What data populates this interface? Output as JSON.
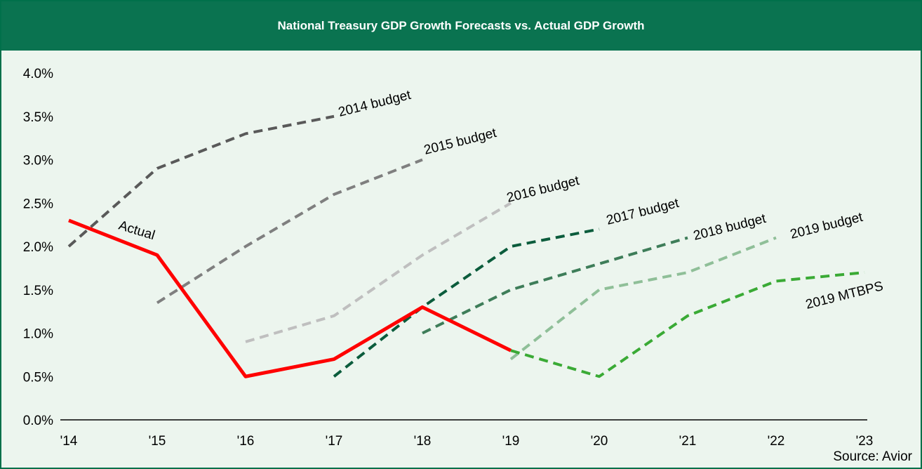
{
  "header": {
    "title": "National Treasury GDP Growth Forecasts vs. Actual GDP Growth"
  },
  "source": "Source: Avior",
  "colors": {
    "header_bg": "#0a7350",
    "plot_bg": "#ecf5ee"
  },
  "chart_data": {
    "type": "line",
    "title": "National Treasury GDP Growth Forecasts vs. Actual GDP Growth",
    "x_labels": [
      "'14",
      "'15",
      "'16",
      "'17",
      "'18",
      "'19",
      "'20",
      "'21",
      "'22",
      "'23"
    ],
    "y_ticks": [
      "0.0%",
      "0.5%",
      "1.0%",
      "1.5%",
      "2.0%",
      "2.5%",
      "3.0%",
      "3.5%",
      "4.0%"
    ],
    "ylim": [
      0,
      4.0
    ],
    "grid": false,
    "series": [
      {
        "name": "Actual",
        "x": [
          0,
          1,
          2,
          3,
          4,
          5
        ],
        "values": [
          2.3,
          1.9,
          0.5,
          0.7,
          1.3,
          0.8
        ],
        "color": "#ff0000",
        "dash": "solid"
      },
      {
        "name": "2014 budget",
        "x": [
          0,
          1,
          2,
          3
        ],
        "values": [
          2.0,
          2.9,
          3.3,
          3.5
        ],
        "color": "#595959",
        "dash": "dashed"
      },
      {
        "name": "2015 budget",
        "x": [
          1,
          2,
          3,
          4
        ],
        "values": [
          1.35,
          2.0,
          2.6,
          3.0
        ],
        "color": "#7f7f7f",
        "dash": "dashed"
      },
      {
        "name": "2016 budget",
        "x": [
          2,
          3,
          4,
          5
        ],
        "values": [
          0.9,
          1.2,
          1.9,
          2.5
        ],
        "color": "#bfbfbf",
        "dash": "dashed"
      },
      {
        "name": "2017 budget",
        "x": [
          3,
          4,
          5,
          6
        ],
        "values": [
          0.5,
          1.3,
          2.0,
          2.2
        ],
        "color": "#0b5c3c",
        "dash": "dashed"
      },
      {
        "name": "2018 budget",
        "x": [
          4,
          5,
          6,
          7
        ],
        "values": [
          1.0,
          1.5,
          1.8,
          2.1
        ],
        "color": "#3e7d59",
        "dash": "dashed"
      },
      {
        "name": "2019 budget",
        "x": [
          5,
          6,
          7,
          8
        ],
        "values": [
          0.7,
          1.5,
          1.7,
          2.1
        ],
        "color": "#8fbf98",
        "dash": "dashed"
      },
      {
        "name": "2019 MTBPS",
        "x": [
          5,
          6,
          7,
          8,
          9
        ],
        "values": [
          0.8,
          0.5,
          1.2,
          1.6,
          1.7
        ],
        "color": "#3aaa35",
        "dash": "dashed"
      }
    ]
  }
}
